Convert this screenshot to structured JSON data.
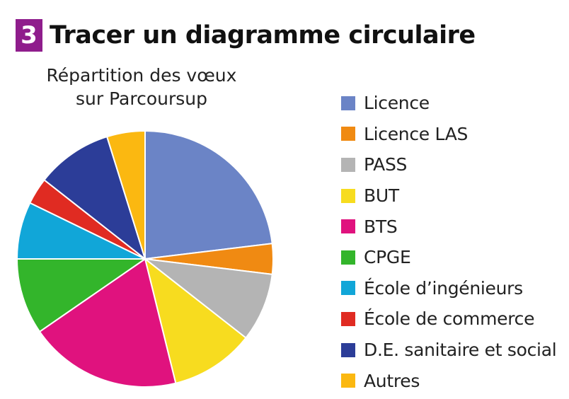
{
  "exercise": {
    "number": "3",
    "title": "Tracer un diagramme circulaire"
  },
  "chart_data": {
    "type": "pie",
    "title_lines": [
      "Répartition des vœux",
      "sur Parcoursup"
    ],
    "legend_position": "right",
    "start_angle_deg": 0,
    "direction": "clockwise",
    "slices": [
      {
        "label": "Licence",
        "value": 24,
        "color": "#6b84c6"
      },
      {
        "label": "Licence LAS",
        "value": 4,
        "color": "#f08a12"
      },
      {
        "label": "PASS",
        "value": 9,
        "color": "#b4b4b4"
      },
      {
        "label": "BUT",
        "value": 11,
        "color": "#f7dc1f"
      },
      {
        "label": "BTS",
        "value": 20,
        "color": "#e0127e"
      },
      {
        "label": "CPGE",
        "value": 10,
        "color": "#33b52b"
      },
      {
        "label": "École d’ingénieurs",
        "value": 7.5,
        "color": "#11a6d8"
      },
      {
        "label": "École de commerce",
        "value": 3.5,
        "color": "#e02b22"
      },
      {
        "label": "D.E. sanitaire et social",
        "value": 10,
        "color": "#2c3d98"
      },
      {
        "label": "Autres",
        "value": 5,
        "color": "#fbb811"
      }
    ]
  }
}
